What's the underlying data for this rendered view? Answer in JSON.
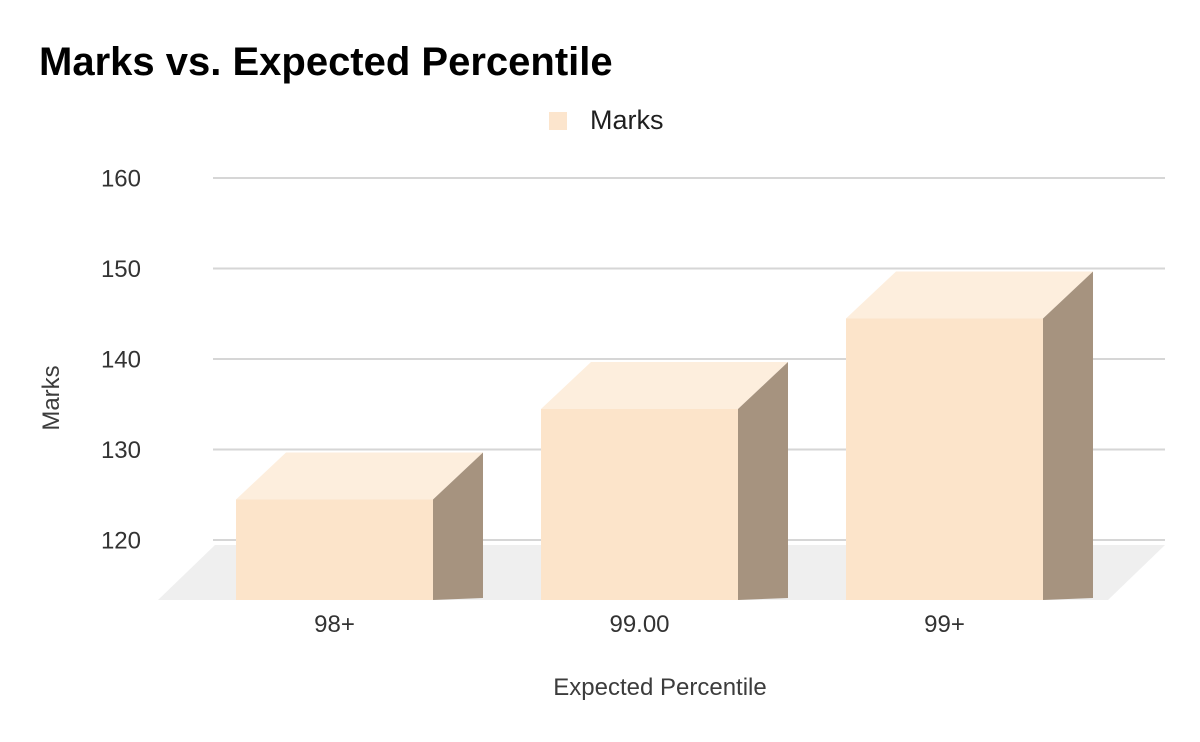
{
  "chart": {
    "title": "Marks vs. Expected Percentile",
    "legend": {
      "items": [
        {
          "label": "Marks",
          "swatch_color": "#fce5cd"
        }
      ]
    },
    "x_axis": {
      "title": "Expected Percentile"
    },
    "y_axis": {
      "title": "Marks"
    }
  },
  "chart_data": {
    "type": "bar",
    "style": "3d-column",
    "title": "Marks vs. Expected Percentile",
    "categories": [
      "98+",
      "99.00",
      "99+"
    ],
    "series": [
      {
        "name": "Marks",
        "values": [
          130,
          140,
          150
        ],
        "color": "#fce5cd"
      }
    ],
    "xlabel": "Expected Percentile",
    "ylabel": "Marks",
    "ylim": [
      120,
      160
    ],
    "yticks": [
      120,
      130,
      140,
      150,
      160
    ],
    "grid": true,
    "legend_position": "top"
  },
  "colors": {
    "background": "#ffffff",
    "title": "#000000",
    "tick_label": "#333333",
    "axis_title": "#3c3c3c",
    "legend_label": "#1f1f1f",
    "bar_front": "#fce4ca",
    "bar_top": "#fdeedd",
    "bar_side": "#a6937f",
    "floor": "#efefef",
    "gridline": "#d6d6d6"
  }
}
